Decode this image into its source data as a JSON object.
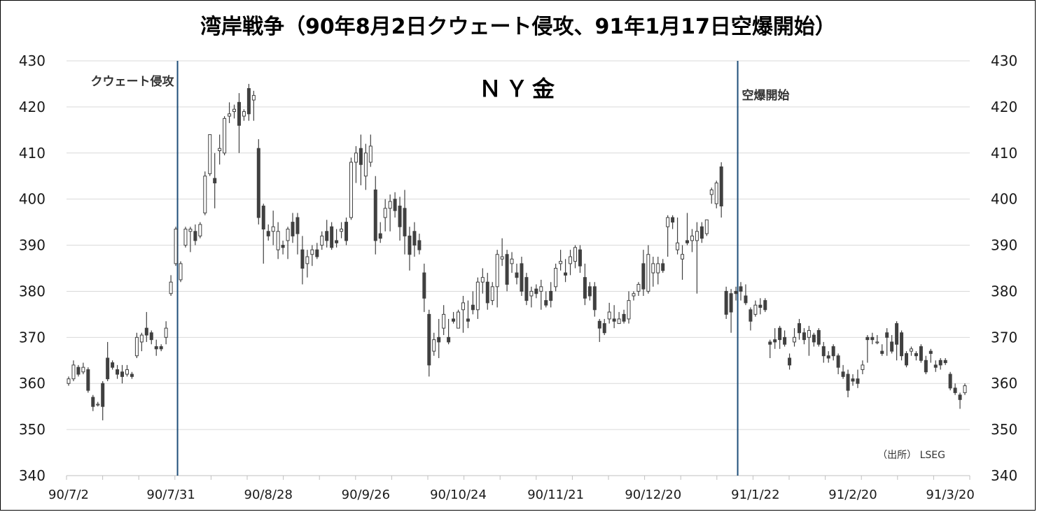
{
  "chart_data": {
    "type": "candlestick",
    "title": "湾岸戦争（90年8月2日クウェート侵攻、91年1月17日空爆開始）",
    "panel_label": "ＮＹ金",
    "source": "（出所） LSEG",
    "ylim": [
      340,
      430
    ],
    "yticks": [
      340,
      350,
      360,
      370,
      380,
      390,
      400,
      410,
      420,
      430
    ],
    "ytick_labels": [
      "340",
      "350",
      "360",
      "370",
      "380",
      "390",
      "400",
      "410",
      "420",
      "430"
    ],
    "xtick_labels": [
      "90/7/2",
      "90/7/31",
      "90/8/28",
      "90/9/26",
      "90/10/24",
      "90/11/21",
      "90/12/20",
      "91/1/22",
      "91/2/20",
      "91/3/20"
    ],
    "xtick_index": [
      0,
      21,
      41,
      61,
      80,
      100,
      120,
      141,
      161,
      181
    ],
    "grid": "horizontal",
    "annotations": [
      {
        "text": "クウェート侵攻",
        "index": 22
      },
      {
        "text": "空爆開始",
        "index": 137
      }
    ],
    "candles": [
      [
        360.0,
        361.5,
        359.5,
        361.0
      ],
      [
        361.0,
        365.0,
        360.5,
        364.0
      ],
      [
        363.5,
        364.0,
        361.5,
        362.0
      ],
      [
        362.5,
        364.5,
        362.0,
        363.5
      ],
      [
        363.0,
        363.5,
        358.0,
        358.5
      ],
      [
        357.0,
        357.5,
        354.0,
        355.0
      ],
      [
        355.5,
        356.0,
        355.0,
        355.5
      ],
      [
        360.0,
        360.5,
        352.0,
        355.0
      ],
      [
        365.5,
        369.0,
        360.5,
        361.0
      ],
      [
        364.5,
        365.0,
        363.0,
        363.5
      ],
      [
        363.0,
        364.0,
        361.0,
        362.0
      ],
      [
        362.5,
        364.0,
        360.0,
        361.5
      ],
      [
        362.0,
        364.0,
        361.5,
        363.0
      ],
      [
        362.0,
        362.5,
        361.0,
        361.5
      ],
      [
        366.0,
        371.0,
        365.5,
        370.0
      ],
      [
        369.0,
        371.0,
        367.0,
        370.5
      ],
      [
        372.0,
        375.5,
        369.0,
        370.5
      ],
      [
        371.0,
        371.5,
        368.5,
        369.5
      ],
      [
        368.0,
        369.5,
        366.0,
        367.5
      ],
      [
        368.0,
        368.5,
        367.0,
        367.5
      ],
      [
        370.0,
        373.5,
        368.5,
        372.0
      ],
      [
        379.5,
        383.5,
        379.0,
        382.0
      ],
      [
        386.0,
        394.0,
        385.5,
        393.5
      ],
      [
        382.5,
        386.5,
        382.0,
        386.0
      ],
      [
        390.0,
        394.0,
        389.5,
        393.5
      ],
      [
        393.0,
        394.0,
        388.5,
        393.5
      ],
      [
        393.0,
        394.5,
        390.0,
        391.0
      ],
      [
        392.0,
        395.0,
        391.5,
        394.5
      ],
      [
        397.0,
        406.0,
        396.5,
        405.0
      ],
      [
        405.5,
        414.0,
        405.0,
        414.0
      ],
      [
        404.5,
        410.0,
        398.0,
        403.5
      ],
      [
        410.5,
        414.0,
        407.5,
        411.0
      ],
      [
        410.0,
        418.0,
        409.5,
        417.5
      ],
      [
        418.0,
        421.0,
        416.5,
        418.5
      ],
      [
        419.0,
        420.5,
        417.5,
        419.5
      ],
      [
        421.0,
        423.0,
        410.0,
        416.0
      ],
      [
        418.0,
        419.5,
        417.0,
        419.0
      ],
      [
        424.0,
        425.0,
        417.0,
        418.5
      ],
      [
        421.5,
        423.5,
        417.0,
        422.5
      ],
      [
        411.0,
        413.0,
        394.5,
        396.0
      ],
      [
        398.5,
        399.0,
        386.0,
        393.5
      ],
      [
        393.0,
        394.5,
        391.0,
        392.0
      ],
      [
        393.0,
        397.5,
        390.0,
        394.0
      ],
      [
        389.0,
        395.0,
        387.0,
        393.0
      ],
      [
        390.0,
        391.0,
        388.0,
        389.5
      ],
      [
        391.0,
        394.0,
        387.0,
        393.5
      ],
      [
        395.0,
        397.0,
        390.5,
        392.0
      ],
      [
        396.0,
        397.0,
        388.0,
        392.5
      ],
      [
        389.0,
        392.0,
        381.5,
        385.0
      ],
      [
        386.0,
        389.0,
        383.0,
        387.5
      ],
      [
        388.0,
        390.0,
        385.5,
        389.0
      ],
      [
        389.0,
        390.5,
        387.0,
        387.5
      ],
      [
        390.0,
        393.0,
        389.0,
        392.0
      ],
      [
        393.0,
        395.5,
        389.5,
        391.0
      ],
      [
        394.0,
        395.0,
        389.0,
        389.5
      ],
      [
        391.0,
        393.5,
        389.5,
        390.5
      ],
      [
        393.0,
        395.0,
        391.5,
        393.5
      ],
      [
        395.0,
        396.0,
        390.0,
        391.0
      ],
      [
        396.0,
        409.0,
        395.5,
        408.0
      ],
      [
        408.0,
        411.5,
        403.5,
        410.0
      ],
      [
        411.0,
        414.0,
        403.0,
        407.5
      ],
      [
        405.0,
        412.0,
        402.0,
        410.0
      ],
      [
        408.0,
        414.0,
        407.0,
        411.5
      ],
      [
        402.0,
        405.0,
        388.0,
        391.0
      ],
      [
        392.5,
        395.0,
        390.5,
        391.5
      ],
      [
        396.0,
        400.0,
        393.0,
        398.0
      ],
      [
        398.0,
        401.0,
        393.0,
        399.5
      ],
      [
        400.0,
        401.5,
        396.0,
        397.5
      ],
      [
        398.5,
        400.5,
        391.0,
        394.0
      ],
      [
        398.0,
        402.0,
        388.0,
        392.0
      ],
      [
        392.0,
        394.0,
        384.5,
        388.0
      ],
      [
        393.0,
        395.0,
        387.5,
        390.0
      ],
      [
        391.0,
        392.5,
        388.0,
        389.0
      ],
      [
        384.0,
        386.0,
        375.5,
        378.5
      ],
      [
        375.0,
        376.0,
        361.5,
        364.0
      ],
      [
        367.0,
        371.0,
        366.0,
        369.5
      ],
      [
        370.0,
        374.0,
        365.5,
        369.0
      ],
      [
        372.0,
        377.0,
        370.5,
        375.0
      ],
      [
        370.0,
        374.0,
        368.5,
        369.0
      ],
      [
        374.0,
        375.5,
        373.0,
        373.5
      ],
      [
        372.0,
        376.0,
        372.0,
        375.5
      ],
      [
        376.0,
        379.0,
        371.0,
        377.5
      ],
      [
        374.0,
        378.0,
        372.0,
        373.5
      ],
      [
        377.0,
        380.0,
        375.0,
        376.0
      ],
      [
        376.0,
        383.0,
        374.0,
        382.0
      ],
      [
        382.0,
        385.0,
        379.5,
        383.0
      ],
      [
        382.0,
        384.0,
        376.0,
        377.5
      ],
      [
        378.0,
        382.0,
        377.0,
        381.0
      ],
      [
        381.0,
        389.0,
        376.5,
        388.0
      ],
      [
        387.0,
        391.5,
        385.5,
        387.5
      ],
      [
        388.0,
        389.0,
        380.0,
        381.5
      ],
      [
        386.0,
        388.5,
        384.0,
        387.0
      ],
      [
        384.0,
        386.0,
        381.5,
        383.0
      ],
      [
        386.0,
        387.5,
        379.0,
        380.0
      ],
      [
        383.0,
        384.0,
        377.0,
        378.0
      ],
      [
        379.0,
        381.0,
        376.5,
        380.0
      ],
      [
        380.5,
        381.5,
        378.5,
        379.5
      ],
      [
        380.0,
        382.5,
        376.0,
        381.0
      ],
      [
        378.0,
        380.0,
        376.5,
        377.0
      ],
      [
        380.0,
        382.0,
        376.5,
        378.0
      ],
      [
        381.0,
        386.0,
        380.0,
        385.0
      ],
      [
        386.0,
        389.0,
        384.5,
        386.5
      ],
      [
        384.0,
        387.0,
        382.0,
        383.5
      ],
      [
        386.0,
        389.0,
        383.5,
        387.5
      ],
      [
        386.5,
        390.0,
        385.0,
        389.5
      ],
      [
        389.0,
        390.0,
        384.0,
        385.5
      ],
      [
        383.0,
        386.0,
        377.0,
        378.5
      ],
      [
        381.0,
        382.0,
        378.0,
        379.0
      ],
      [
        381.0,
        382.0,
        374.5,
        376.0
      ],
      [
        373.5,
        374.0,
        369.0,
        372.0
      ],
      [
        373.0,
        374.0,
        370.5,
        371.0
      ],
      [
        374.0,
        377.5,
        373.0,
        375.5
      ],
      [
        374.0,
        377.0,
        372.0,
        373.5
      ],
      [
        373.0,
        375.5,
        373.0,
        374.0
      ],
      [
        375.0,
        376.0,
        373.0,
        373.5
      ],
      [
        374.0,
        380.0,
        373.0,
        378.0
      ],
      [
        379.0,
        380.0,
        378.0,
        379.5
      ],
      [
        380.0,
        382.0,
        379.0,
        381.5
      ],
      [
        386.0,
        389.0,
        379.0,
        380.5
      ],
      [
        380.0,
        390.0,
        379.5,
        388.0
      ],
      [
        384.0,
        387.5,
        381.0,
        386.0
      ],
      [
        384.0,
        387.5,
        381.5,
        386.0
      ],
      [
        386.0,
        387.0,
        384.0,
        384.5
      ],
      [
        394.0,
        396.5,
        387.5,
        396.0
      ],
      [
        396.0,
        396.5,
        393.5,
        395.0
      ],
      [
        389.0,
        396.0,
        388.0,
        390.5
      ],
      [
        387.0,
        390.0,
        382.5,
        388.0
      ],
      [
        391.0,
        397.0,
        390.0,
        390.5
      ],
      [
        391.0,
        393.5,
        388.5,
        392.0
      ],
      [
        391.0,
        395.0,
        379.5,
        393.0
      ],
      [
        394.0,
        395.0,
        390.5,
        391.5
      ],
      [
        392.5,
        395.5,
        392.0,
        395.5
      ],
      [
        401.0,
        402.5,
        399.0,
        402.0
      ],
      [
        399.0,
        404.0,
        398.0,
        403.5
      ],
      [
        407.0,
        408.0,
        396.0,
        398.5
      ],
      [
        380.0,
        381.0,
        374.0,
        375.0
      ],
      [
        379.5,
        380.5,
        371.0,
        375.5
      ],
      [
        380.0,
        381.0,
        378.0,
        379.5
      ],
      [
        381.0,
        382.0,
        378.0,
        380.0
      ],
      [
        379.0,
        381.5,
        377.0,
        377.5
      ],
      [
        376.0,
        376.5,
        371.5,
        373.5
      ],
      [
        375.0,
        378.0,
        374.5,
        377.0
      ],
      [
        377.0,
        378.5,
        375.0,
        376.5
      ],
      [
        378.0,
        378.5,
        375.5,
        376.0
      ],
      [
        369.0,
        369.5,
        365.5,
        368.5
      ],
      [
        369.5,
        372.0,
        367.5,
        369.0
      ],
      [
        372.0,
        372.5,
        367.5,
        369.5
      ],
      [
        370.0,
        371.5,
        368.0,
        368.5
      ],
      [
        365.5,
        366.5,
        363.0,
        364.0
      ],
      [
        369.0,
        372.0,
        368.0,
        370.0
      ],
      [
        373.0,
        374.0,
        369.5,
        371.0
      ],
      [
        371.0,
        372.0,
        368.5,
        369.5
      ],
      [
        370.0,
        372.5,
        366.0,
        371.5
      ],
      [
        370.5,
        371.0,
        368.0,
        369.0
      ],
      [
        371.5,
        372.0,
        368.0,
        368.5
      ],
      [
        368.0,
        369.0,
        364.5,
        366.0
      ],
      [
        366.0,
        367.0,
        364.5,
        365.5
      ],
      [
        368.0,
        368.5,
        365.0,
        366.0
      ],
      [
        366.0,
        366.5,
        362.0,
        363.5
      ],
      [
        362.5,
        364.0,
        361.0,
        361.5
      ],
      [
        362.0,
        363.0,
        357.0,
        358.5
      ],
      [
        361.0,
        362.0,
        359.5,
        360.5
      ],
      [
        361.0,
        363.0,
        359.0,
        360.0
      ],
      [
        363.0,
        365.0,
        362.0,
        364.0
      ],
      [
        370.0,
        370.5,
        364.5,
        369.5
      ],
      [
        370.0,
        371.0,
        368.5,
        369.5
      ],
      [
        369.0,
        370.5,
        368.5,
        369.0
      ],
      [
        367.0,
        368.5,
        366.0,
        366.5
      ],
      [
        371.0,
        372.0,
        366.0,
        370.0
      ],
      [
        369.0,
        370.5,
        366.5,
        367.0
      ],
      [
        373.0,
        373.5,
        365.0,
        368.5
      ],
      [
        371.0,
        371.5,
        365.0,
        366.0
      ],
      [
        366.5,
        367.0,
        363.5,
        364.0
      ],
      [
        367.0,
        368.0,
        366.0,
        367.5
      ],
      [
        366.5,
        367.0,
        365.0,
        366.0
      ],
      [
        368.0,
        368.5,
        364.5,
        365.0
      ],
      [
        365.0,
        366.0,
        362.0,
        362.5
      ],
      [
        367.0,
        367.5,
        364.5,
        366.5
      ],
      [
        364.0,
        365.0,
        362.5,
        363.5
      ],
      [
        365.0,
        365.5,
        363.0,
        364.0
      ],
      [
        365.0,
        365.5,
        364.0,
        364.5
      ],
      [
        362.0,
        362.5,
        358.5,
        359.0
      ],
      [
        359.0,
        360.0,
        357.5,
        358.0
      ],
      [
        357.5,
        358.0,
        354.5,
        356.5
      ],
      [
        358.0,
        360.0,
        357.5,
        359.5
      ]
    ]
  }
}
